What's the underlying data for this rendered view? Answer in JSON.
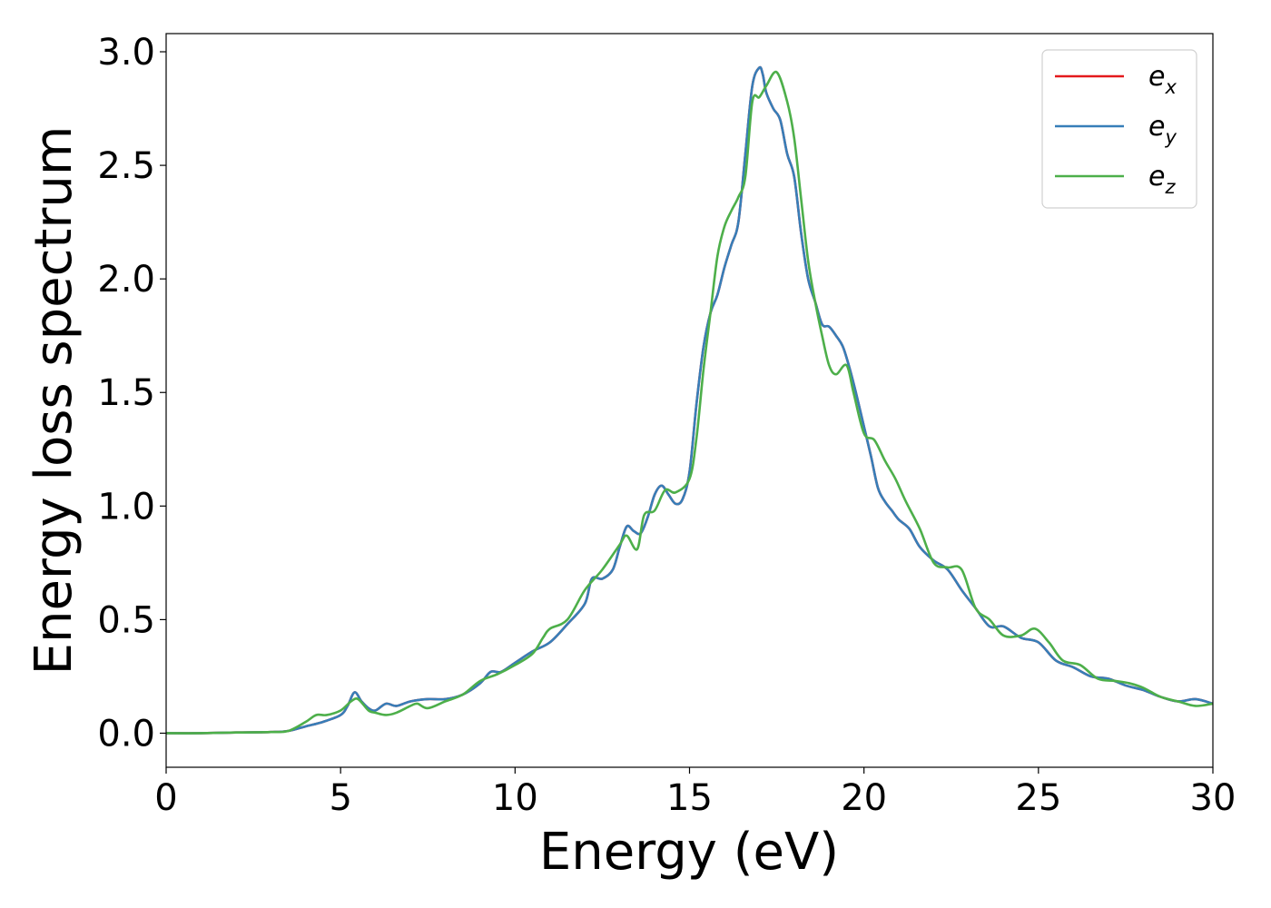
{
  "chart_data": {
    "type": "line",
    "title": "",
    "xlabel": "Energy (eV)",
    "ylabel": "Energy loss spectrum",
    "xlim": [
      0,
      30
    ],
    "ylim": [
      -0.15,
      3.08
    ],
    "xticks": [
      0,
      5,
      10,
      15,
      20,
      25,
      30
    ],
    "yticks": [
      0.0,
      0.5,
      1.0,
      1.5,
      2.0,
      2.5,
      3.0
    ],
    "xtick_labels": [
      "0",
      "5",
      "10",
      "15",
      "20",
      "25",
      "30"
    ],
    "ytick_labels": [
      "0.0",
      "0.5",
      "1.0",
      "1.5",
      "2.0",
      "2.5",
      "3.0"
    ],
    "grid": false,
    "legend_position": "top-right",
    "series": [
      {
        "name": "e_x",
        "label_main": "e",
        "label_sub": "x",
        "color": "#e41a1c",
        "x": [
          0,
          1,
          2,
          3,
          3.5,
          4,
          4.5,
          5,
          5.2,
          5.4,
          5.6,
          5.8,
          6,
          6.3,
          6.6,
          7,
          7.5,
          8,
          8.5,
          9,
          9.3,
          9.6,
          10,
          10.5,
          11,
          11.5,
          12,
          12.2,
          12.5,
          12.8,
          13,
          13.2,
          13.4,
          13.6,
          13.8,
          14,
          14.2,
          14.4,
          14.6,
          14.8,
          15,
          15.2,
          15.4,
          15.6,
          15.8,
          16,
          16.2,
          16.4,
          16.6,
          16.8,
          17,
          17.1,
          17.2,
          17.4,
          17.6,
          17.8,
          18,
          18.2,
          18.4,
          18.6,
          18.8,
          19,
          19.2,
          19.4,
          19.6,
          19.8,
          20,
          20.2,
          20.4,
          20.6,
          20.8,
          21,
          21.3,
          21.6,
          22,
          22.4,
          22.8,
          23.2,
          23.6,
          24,
          24.5,
          25,
          25.5,
          26,
          26.5,
          27,
          27.5,
          28,
          28.5,
          29,
          29.5,
          30
        ],
        "values": [
          0.0,
          0.0,
          0.003,
          0.005,
          0.01,
          0.03,
          0.05,
          0.08,
          0.12,
          0.18,
          0.14,
          0.11,
          0.1,
          0.13,
          0.12,
          0.14,
          0.15,
          0.15,
          0.17,
          0.22,
          0.27,
          0.27,
          0.31,
          0.36,
          0.4,
          0.48,
          0.57,
          0.68,
          0.68,
          0.72,
          0.82,
          0.91,
          0.89,
          0.88,
          0.95,
          1.05,
          1.09,
          1.05,
          1.01,
          1.03,
          1.15,
          1.45,
          1.7,
          1.85,
          1.93,
          2.05,
          2.15,
          2.25,
          2.55,
          2.85,
          2.93,
          2.9,
          2.82,
          2.75,
          2.7,
          2.55,
          2.45,
          2.2,
          2.0,
          1.9,
          1.8,
          1.79,
          1.75,
          1.7,
          1.6,
          1.48,
          1.35,
          1.22,
          1.08,
          1.02,
          0.98,
          0.94,
          0.9,
          0.82,
          0.76,
          0.72,
          0.63,
          0.55,
          0.47,
          0.47,
          0.42,
          0.4,
          0.32,
          0.29,
          0.25,
          0.24,
          0.21,
          0.19,
          0.16,
          0.14,
          0.15,
          0.13
        ]
      },
      {
        "name": "e_y",
        "label_main": "e",
        "label_sub": "y",
        "color": "#377eb8",
        "x": [
          0,
          1,
          2,
          3,
          3.5,
          4,
          4.5,
          5,
          5.2,
          5.4,
          5.6,
          5.8,
          6,
          6.3,
          6.6,
          7,
          7.5,
          8,
          8.5,
          9,
          9.3,
          9.6,
          10,
          10.5,
          11,
          11.5,
          12,
          12.2,
          12.5,
          12.8,
          13,
          13.2,
          13.4,
          13.6,
          13.8,
          14,
          14.2,
          14.4,
          14.6,
          14.8,
          15,
          15.2,
          15.4,
          15.6,
          15.8,
          16,
          16.2,
          16.4,
          16.6,
          16.8,
          17,
          17.1,
          17.2,
          17.4,
          17.6,
          17.8,
          18,
          18.2,
          18.4,
          18.6,
          18.8,
          19,
          19.2,
          19.4,
          19.6,
          19.8,
          20,
          20.2,
          20.4,
          20.6,
          20.8,
          21,
          21.3,
          21.6,
          22,
          22.4,
          22.8,
          23.2,
          23.6,
          24,
          24.5,
          25,
          25.5,
          26,
          26.5,
          27,
          27.5,
          28,
          28.5,
          29,
          29.5,
          30
        ],
        "values": [
          0.0,
          0.0,
          0.003,
          0.005,
          0.01,
          0.03,
          0.05,
          0.08,
          0.12,
          0.18,
          0.14,
          0.11,
          0.1,
          0.13,
          0.12,
          0.14,
          0.15,
          0.15,
          0.17,
          0.22,
          0.27,
          0.27,
          0.31,
          0.36,
          0.4,
          0.48,
          0.57,
          0.68,
          0.68,
          0.72,
          0.82,
          0.91,
          0.89,
          0.88,
          0.95,
          1.05,
          1.09,
          1.05,
          1.01,
          1.03,
          1.15,
          1.45,
          1.7,
          1.85,
          1.93,
          2.05,
          2.15,
          2.25,
          2.55,
          2.85,
          2.93,
          2.9,
          2.82,
          2.75,
          2.7,
          2.55,
          2.45,
          2.2,
          2.0,
          1.9,
          1.8,
          1.79,
          1.75,
          1.7,
          1.6,
          1.48,
          1.35,
          1.22,
          1.08,
          1.02,
          0.98,
          0.94,
          0.9,
          0.82,
          0.76,
          0.72,
          0.63,
          0.55,
          0.47,
          0.47,
          0.42,
          0.4,
          0.32,
          0.29,
          0.25,
          0.24,
          0.21,
          0.19,
          0.16,
          0.14,
          0.15,
          0.13
        ]
      },
      {
        "name": "e_z",
        "label_main": "e",
        "label_sub": "z",
        "color": "#4daf4a",
        "x": [
          0,
          1,
          2,
          3,
          3.5,
          4,
          4.3,
          4.6,
          5,
          5.3,
          5.5,
          5.8,
          6,
          6.3,
          6.6,
          7,
          7.2,
          7.5,
          8,
          8.5,
          9,
          9.5,
          10,
          10.5,
          10.8,
          11,
          11.5,
          12,
          12.5,
          13,
          13.2,
          13.5,
          13.7,
          14,
          14.3,
          14.6,
          15,
          15.2,
          15.4,
          15.6,
          15.8,
          16,
          16.2,
          16.4,
          16.6,
          16.8,
          17,
          17.2,
          17.5,
          17.8,
          18,
          18.2,
          18.4,
          18.6,
          18.8,
          19,
          19.2,
          19.5,
          19.7,
          20,
          20.3,
          20.6,
          20.9,
          21.2,
          21.6,
          22,
          22.4,
          22.8,
          23.2,
          23.6,
          24,
          24.5,
          24.9,
          25.3,
          25.7,
          26.2,
          26.7,
          27.2,
          27.6,
          28,
          28.5,
          29,
          29.5,
          30
        ],
        "values": [
          0.0,
          0.0,
          0.003,
          0.005,
          0.01,
          0.05,
          0.08,
          0.08,
          0.1,
          0.14,
          0.15,
          0.1,
          0.09,
          0.08,
          0.09,
          0.12,
          0.13,
          0.11,
          0.14,
          0.17,
          0.23,
          0.26,
          0.3,
          0.35,
          0.42,
          0.46,
          0.5,
          0.63,
          0.72,
          0.83,
          0.87,
          0.81,
          0.96,
          0.98,
          1.07,
          1.06,
          1.12,
          1.3,
          1.6,
          1.85,
          2.1,
          2.23,
          2.3,
          2.36,
          2.45,
          2.78,
          2.8,
          2.85,
          2.91,
          2.78,
          2.62,
          2.35,
          2.08,
          1.9,
          1.75,
          1.62,
          1.58,
          1.62,
          1.5,
          1.32,
          1.29,
          1.2,
          1.12,
          1.02,
          0.9,
          0.75,
          0.73,
          0.72,
          0.55,
          0.5,
          0.43,
          0.43,
          0.46,
          0.4,
          0.32,
          0.3,
          0.24,
          0.23,
          0.22,
          0.2,
          0.16,
          0.14,
          0.12,
          0.13
        ]
      }
    ]
  }
}
